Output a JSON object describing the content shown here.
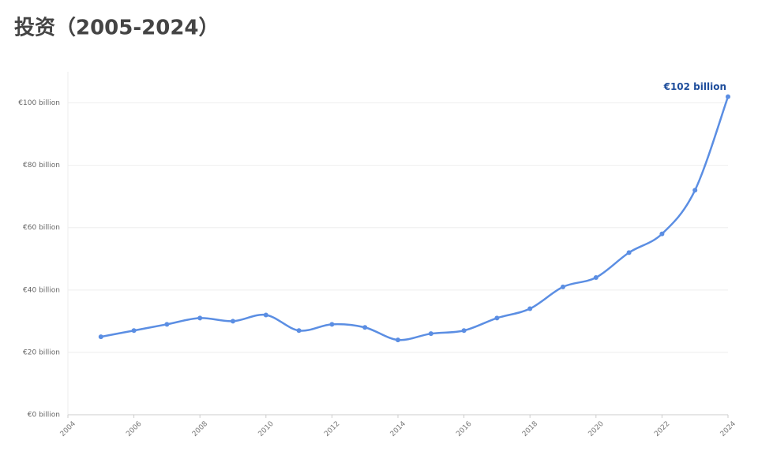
{
  "chart_data": {
    "type": "line",
    "title": "投资（2005-2024）",
    "x": [
      2005,
      2006,
      2007,
      2008,
      2009,
      2010,
      2011,
      2012,
      2013,
      2014,
      2015,
      2016,
      2017,
      2018,
      2019,
      2020,
      2021,
      2022,
      2023,
      2024
    ],
    "values": [
      25,
      27,
      29,
      31,
      30,
      32,
      27,
      29,
      28,
      24,
      26,
      27,
      31,
      34,
      41,
      44,
      52,
      58,
      72,
      102
    ],
    "value_labels": [
      null,
      null,
      null,
      null,
      null,
      null,
      null,
      null,
      null,
      null,
      null,
      null,
      null,
      null,
      null,
      null,
      null,
      null,
      null,
      "€102 billion"
    ],
    "color": "#5b8ee3",
    "xlim": [
      2004,
      2024
    ],
    "xticks": [
      2004,
      2006,
      2008,
      2010,
      2012,
      2014,
      2016,
      2018,
      2020,
      2022,
      2024
    ],
    "ylim": [
      0,
      110
    ],
    "yticks": [
      {
        "value": 0,
        "label": "€0 billion"
      },
      {
        "value": 20,
        "label": "€20 billion"
      },
      {
        "value": 40,
        "label": "€40 billion"
      },
      {
        "value": 60,
        "label": "€60 billion"
      },
      {
        "value": 80,
        "label": "€80 billion"
      },
      {
        "value": 100,
        "label": "€100 billion"
      }
    ],
    "grid": true
  }
}
